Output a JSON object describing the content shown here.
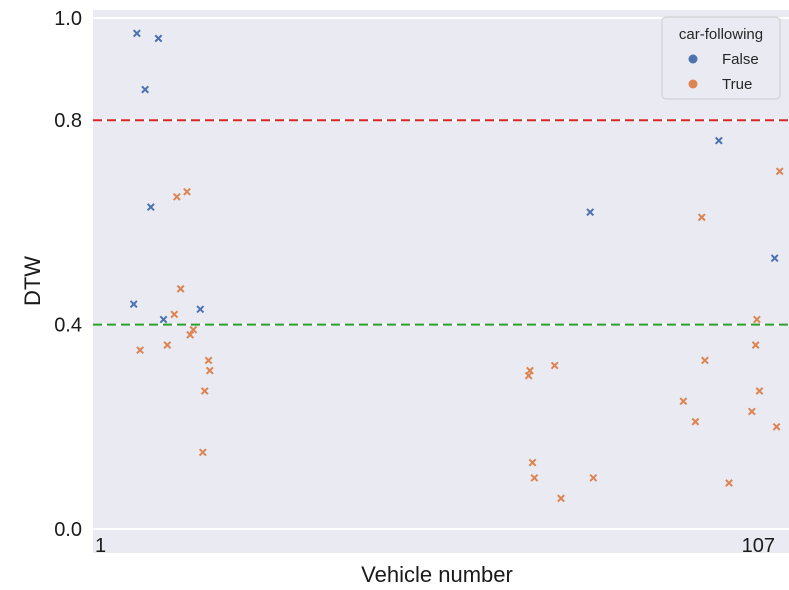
{
  "chart_data": {
    "type": "scatter",
    "xlabel": "Vehicle number",
    "ylabel": "DTW",
    "xlim": [
      1,
      107
    ],
    "ylim": [
      0.0,
      1.0
    ],
    "xticks": [
      {
        "value": 1,
        "label": "1"
      },
      {
        "value": 107,
        "label": "107"
      }
    ],
    "yticks": [
      {
        "value": 0.0,
        "label": "0.0"
      },
      {
        "value": 0.4,
        "label": "0.4"
      },
      {
        "value": 0.8,
        "label": "0.8"
      },
      {
        "value": 1.0,
        "label": "1.0"
      }
    ],
    "reference_lines": [
      {
        "y": 0.8,
        "color": "#d62728",
        "style": "dashed"
      },
      {
        "y": 0.4,
        "color": "#2ca02c",
        "style": "dashed"
      }
    ],
    "legend": {
      "title": "car-following",
      "placement": "top-right"
    },
    "grid": true,
    "background": "#eaeaf2",
    "marker": "x",
    "series": [
      {
        "name": "False",
        "color": "#4c72b0",
        "points": [
          {
            "x": 5.4,
            "y": 0.97
          },
          {
            "x": 6.7,
            "y": 0.86
          },
          {
            "x": 7.6,
            "y": 0.63
          },
          {
            "x": 8.8,
            "y": 0.96
          },
          {
            "x": 4.9,
            "y": 0.44
          },
          {
            "x": 9.6,
            "y": 0.41
          },
          {
            "x": 15.4,
            "y": 0.43
          },
          {
            "x": 76.9,
            "y": 0.62
          },
          {
            "x": 97.2,
            "y": 0.76
          },
          {
            "x": 106.0,
            "y": 0.53
          }
        ]
      },
      {
        "name": "True",
        "color": "#dd8452",
        "points": [
          {
            "x": 11.7,
            "y": 0.65
          },
          {
            "x": 13.3,
            "y": 0.66
          },
          {
            "x": 12.3,
            "y": 0.47
          },
          {
            "x": 11.3,
            "y": 0.42
          },
          {
            "x": 13.8,
            "y": 0.38
          },
          {
            "x": 14.3,
            "y": 0.39
          },
          {
            "x": 10.2,
            "y": 0.36
          },
          {
            "x": 5.9,
            "y": 0.35
          },
          {
            "x": 16.7,
            "y": 0.33
          },
          {
            "x": 16.9,
            "y": 0.31
          },
          {
            "x": 16.1,
            "y": 0.27
          },
          {
            "x": 15.8,
            "y": 0.15
          },
          {
            "x": 67.2,
            "y": 0.3
          },
          {
            "x": 67.4,
            "y": 0.31
          },
          {
            "x": 71.3,
            "y": 0.32
          },
          {
            "x": 67.8,
            "y": 0.13
          },
          {
            "x": 68.1,
            "y": 0.1
          },
          {
            "x": 72.3,
            "y": 0.06
          },
          {
            "x": 77.4,
            "y": 0.1
          },
          {
            "x": 94.5,
            "y": 0.61
          },
          {
            "x": 95.0,
            "y": 0.33
          },
          {
            "x": 93.5,
            "y": 0.21
          },
          {
            "x": 91.6,
            "y": 0.25
          },
          {
            "x": 98.8,
            "y": 0.09
          },
          {
            "x": 102.4,
            "y": 0.23
          },
          {
            "x": 103.0,
            "y": 0.36
          },
          {
            "x": 103.2,
            "y": 0.41
          },
          {
            "x": 103.6,
            "y": 0.27
          },
          {
            "x": 106.3,
            "y": 0.2
          },
          {
            "x": 106.8,
            "y": 0.7
          }
        ]
      }
    ]
  }
}
